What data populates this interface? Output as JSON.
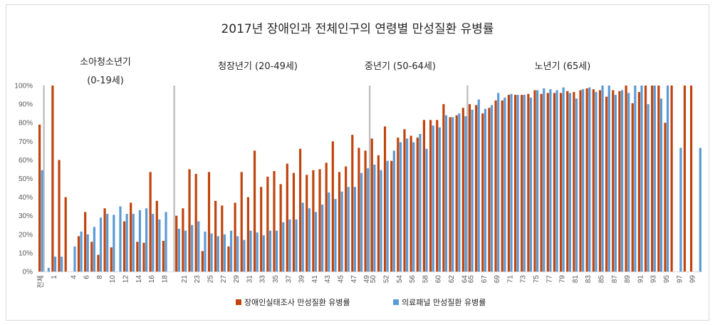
{
  "chart_data": {
    "type": "bar",
    "title": "2017년 장애인과 전체인구의 연령별 만성질환 유병률",
    "xlabel": "",
    "ylabel": "",
    "ylim": [
      0,
      1
    ],
    "yticks": [
      "0%",
      "10%",
      "20%",
      "30%",
      "40%",
      "50%",
      "60%",
      "70%",
      "80%",
      "90%",
      "100%"
    ],
    "legend_position": "bottom",
    "grid": false,
    "sections": [
      {
        "label": "소아청소년기",
        "sublabel": "(0-19세)"
      },
      {
        "label": "청장년기 (20-49세)",
        "sublabel": ""
      },
      {
        "label": "중년기 (50-64세)",
        "sublabel": ""
      },
      {
        "label": "노년기 (65세)",
        "sublabel": ""
      }
    ],
    "categories": [
      "전체",
      "0",
      "1",
      "2",
      "3",
      "4",
      "5",
      "6",
      "7",
      "8",
      "9",
      "10",
      "11",
      "12",
      "13",
      "14",
      "15",
      "16",
      "17",
      "18",
      "19",
      "20",
      "21",
      "22",
      "23",
      "24",
      "25",
      "26",
      "27",
      "28",
      "29",
      "30",
      "31",
      "32",
      "33",
      "34",
      "35",
      "36",
      "37",
      "38",
      "39",
      "40",
      "41",
      "42",
      "43",
      "44",
      "45",
      "46",
      "47",
      "48",
      "49",
      "50",
      "51",
      "52",
      "53",
      "54",
      "55",
      "56",
      "57",
      "58",
      "59",
      "60",
      "61",
      "62",
      "63",
      "64",
      "65",
      "66",
      "67",
      "68",
      "69",
      "70",
      "71",
      "72",
      "73",
      "74",
      "75",
      "76",
      "77",
      "78",
      "79",
      "80",
      "81",
      "82",
      "83",
      "84",
      "85",
      "86",
      "87",
      "88",
      "89",
      "90",
      "91",
      "92",
      "93",
      "94",
      "95",
      "96",
      "97",
      "98",
      "99",
      "100"
    ],
    "tick_labels": [
      "전체",
      "1",
      "4",
      "6",
      "8",
      "10",
      "12",
      "14",
      "16",
      "18",
      "21",
      "23",
      "25",
      "27",
      "29",
      "31",
      "33",
      "35",
      "37",
      "39",
      "41",
      "43",
      "45",
      "47",
      "49",
      "50",
      "52",
      "54",
      "56",
      "58",
      "60",
      "62",
      "64",
      "65",
      "67",
      "69",
      "71",
      "73",
      "75",
      "77",
      "79",
      "81",
      "83",
      "85",
      "87",
      "89",
      "91",
      "93",
      "95",
      "97",
      "99"
    ],
    "series": [
      {
        "name": "장애인실태조사 만성질환 유병률",
        "color": "#c0440e",
        "values": [
          0.79,
          0,
          1.0,
          0.6,
          0.4,
          0,
          0.19,
          0.32,
          0.16,
          0.09,
          0.34,
          0.13,
          0,
          0.27,
          0.37,
          0.16,
          0.155,
          0.535,
          0.38,
          0.165,
          0,
          0.3,
          0.34,
          0.55,
          0.525,
          0.11,
          0.535,
          0.38,
          0.355,
          0.135,
          0.37,
          0.535,
          0.4,
          0.65,
          0.455,
          0.51,
          0.54,
          0.47,
          0.58,
          0.53,
          0.66,
          0.52,
          0.545,
          0.55,
          0.585,
          0.7,
          0.535,
          0.565,
          0.735,
          0.665,
          0.65,
          0.715,
          0.625,
          0.78,
          0.595,
          0.72,
          0.765,
          0.73,
          0.72,
          0.815,
          0.815,
          0.815,
          0.9,
          0.83,
          0.84,
          0.88,
          0.9,
          0.895,
          0.85,
          0.88,
          0.92,
          0.92,
          0.95,
          0.95,
          0.95,
          0.955,
          0.975,
          0.955,
          0.96,
          0.96,
          0.96,
          0.97,
          0.965,
          0.975,
          0.985,
          0.98,
          0.975,
          0.94,
          0.975,
          0.97,
          1.0,
          0.905,
          0.965,
          1.0,
          1.0,
          1.0,
          0.8,
          1.0,
          0,
          1.0,
          1.0,
          0
        ],
        "color_note": "dark orange"
      },
      {
        "name": "의료패널 만성질환 유병률",
        "color": "#5b9bd5",
        "values": [
          0.545,
          0.02,
          0.08,
          0.08,
          0,
          0.135,
          0.215,
          0.2,
          0.24,
          0.29,
          0.31,
          0.305,
          0.35,
          0.31,
          0.31,
          0.33,
          0.34,
          0.31,
          0.28,
          0.32,
          0,
          0.23,
          0.22,
          0.25,
          0.27,
          0.215,
          0.205,
          0.19,
          0.2,
          0.22,
          0.19,
          0.17,
          0.22,
          0.21,
          0.195,
          0.22,
          0.22,
          0.265,
          0.28,
          0.28,
          0.37,
          0.34,
          0.32,
          0.36,
          0.425,
          0.39,
          0.43,
          0.455,
          0.455,
          0.53,
          0.555,
          0.575,
          0.545,
          0.595,
          0.65,
          0.695,
          0.715,
          0.695,
          0.74,
          0.66,
          0.785,
          0.775,
          0.84,
          0.83,
          0.85,
          0.835,
          0.87,
          0.925,
          0.875,
          0.895,
          0.96,
          0.935,
          0.955,
          0.95,
          0.95,
          0.935,
          0.975,
          0.985,
          0.98,
          0.975,
          0.99,
          0.96,
          0.93,
          0.98,
          0.99,
          0.965,
          1.0,
          1.0,
          0.95,
          0.975,
          0.96,
          1.0,
          1.0,
          0.9,
          1.0,
          0.93,
          1.0,
          0,
          0.665,
          0,
          0,
          0.665
        ]
      }
    ]
  }
}
